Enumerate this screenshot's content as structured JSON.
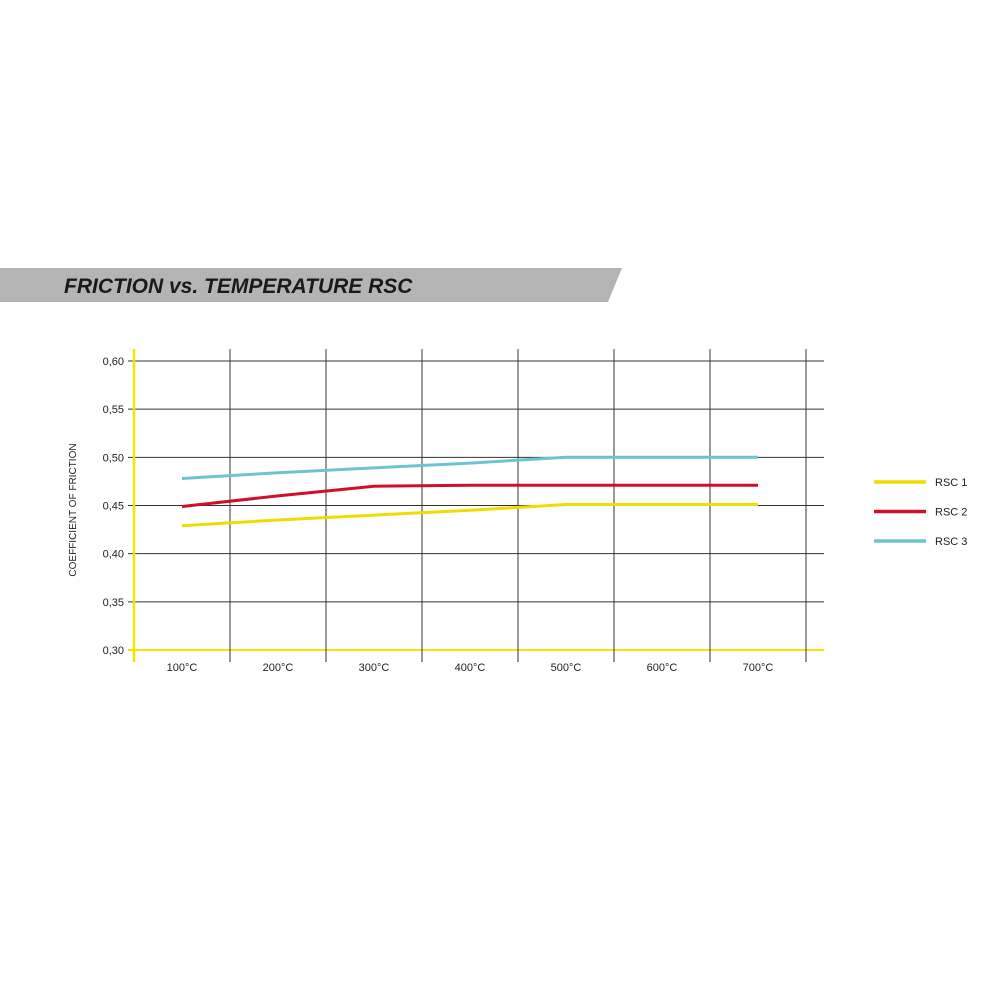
{
  "chart_data": {
    "type": "line",
    "title": "FRICTION vs. TEMPERATURE RSC",
    "xlabel": "",
    "ylabel": "COEFFICIENT OF FRICTION",
    "categories": [
      "100°C",
      "200°C",
      "300°C",
      "400°C",
      "500°C",
      "600°C",
      "700°C"
    ],
    "y_ticks": [
      "0,60",
      "0,55",
      "0,50",
      "0,45",
      "0,40",
      "0,35",
      "0,30"
    ],
    "y_tick_values": [
      0.6,
      0.55,
      0.5,
      0.45,
      0.4,
      0.35,
      0.3
    ],
    "ylim": [
      0.3,
      0.6
    ],
    "grid": true,
    "legend_position": "right",
    "axis_color": "#f2e600",
    "series": [
      {
        "name": "RSC 1",
        "color": "#f0dc00",
        "values": [
          0.429,
          0.435,
          0.44,
          0.445,
          0.451,
          0.451,
          0.451
        ]
      },
      {
        "name": "RSC 2",
        "color": "#d0102a",
        "values": [
          0.449,
          0.46,
          0.47,
          0.471,
          0.471,
          0.471,
          0.471
        ]
      },
      {
        "name": "RSC 3",
        "color": "#6cc4d0",
        "values": [
          0.478,
          0.484,
          0.489,
          0.494,
          0.5,
          0.5,
          0.5
        ]
      }
    ]
  }
}
